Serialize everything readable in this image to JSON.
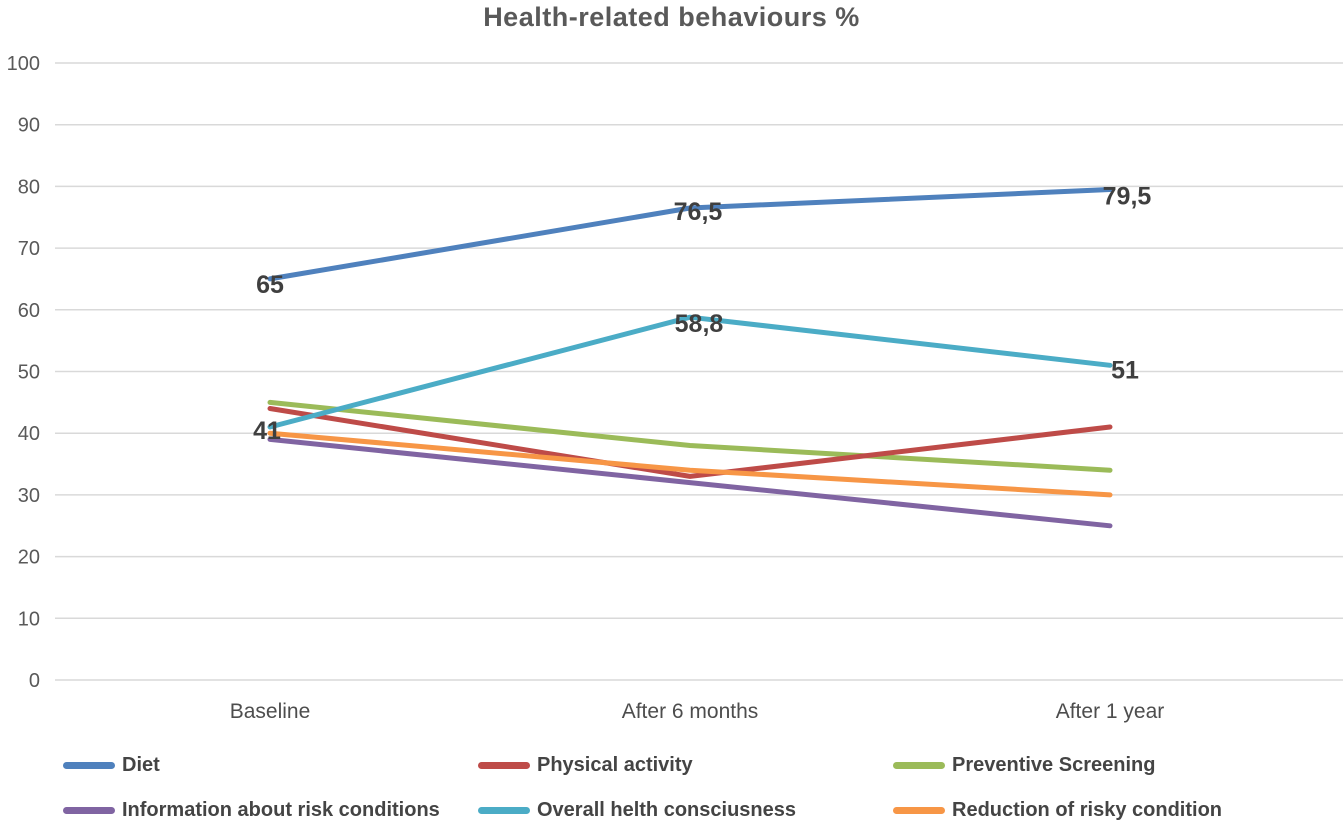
{
  "title": "Health-related behaviours %",
  "chart_data": {
    "type": "line",
    "title": "Health-related behaviours %",
    "categories": [
      "Baseline",
      "After 6 months",
      "After 1 year"
    ],
    "series": [
      {
        "name": "Diet",
        "color": "#4F81BD",
        "values": [
          65,
          76.5,
          79.5
        ],
        "point_labels": [
          "65",
          "76,5",
          "79,5"
        ]
      },
      {
        "name": "Physical activity",
        "color": "#BE4B48",
        "values": [
          44,
          33,
          41
        ],
        "point_labels": null
      },
      {
        "name": "Preventive Screening",
        "color": "#9BBB59",
        "values": [
          45,
          38,
          34
        ],
        "point_labels": null
      },
      {
        "name": "Information about risk conditions",
        "color": "#8064A2",
        "values": [
          39,
          32,
          25
        ],
        "point_labels": null
      },
      {
        "name": "Overall helth consciusness",
        "color": "#4BACC6",
        "values": [
          41,
          58.8,
          51
        ],
        "point_labels": [
          "41",
          "58,8",
          "51"
        ]
      },
      {
        "name": "Reduction of risky condition",
        "color": "#F79646",
        "values": [
          40,
          34,
          30
        ],
        "point_labels": null
      }
    ],
    "ylim": [
      0,
      100
    ],
    "ytick_step": 10,
    "ytick_labels": [
      "0",
      "10",
      "20",
      "30",
      "40",
      "50",
      "60",
      "70",
      "80",
      "90",
      "100"
    ],
    "grid": "horizontal",
    "legend_position": "bottom",
    "axis_label_color": "#595959",
    "grid_color": "#D9D9D9",
    "data_label_color": "#3f3f3f"
  }
}
